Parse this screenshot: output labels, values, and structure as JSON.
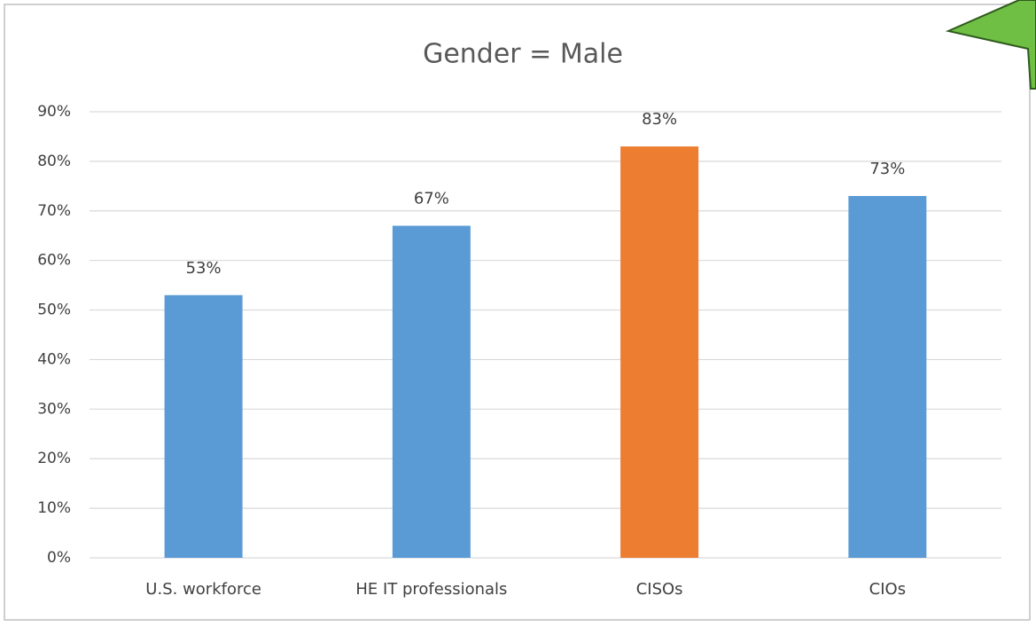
{
  "chart_data": {
    "type": "bar",
    "title": "Gender = Male",
    "categories": [
      "U.S. workforce",
      "HE IT professionals",
      "CISOs",
      "CIOs"
    ],
    "values": [
      53,
      67,
      83,
      73
    ],
    "value_labels": [
      "53%",
      "67%",
      "83%",
      "73%"
    ],
    "colors": [
      "#5b9bd5",
      "#5b9bd5",
      "#ed7d31",
      "#5b9bd5"
    ],
    "ylim": [
      0,
      90
    ],
    "yticks": [
      {
        "value": 0,
        "label": "0%"
      },
      {
        "value": 10,
        "label": "10%"
      },
      {
        "value": 20,
        "label": "20%"
      },
      {
        "value": 30,
        "label": "30%"
      },
      {
        "value": 40,
        "label": "40%"
      },
      {
        "value": 50,
        "label": "50%"
      },
      {
        "value": 60,
        "label": "60%"
      },
      {
        "value": 70,
        "label": "70%"
      },
      {
        "value": 80,
        "label": "80%"
      },
      {
        "value": 90,
        "label": "90%"
      }
    ],
    "grid": true
  }
}
